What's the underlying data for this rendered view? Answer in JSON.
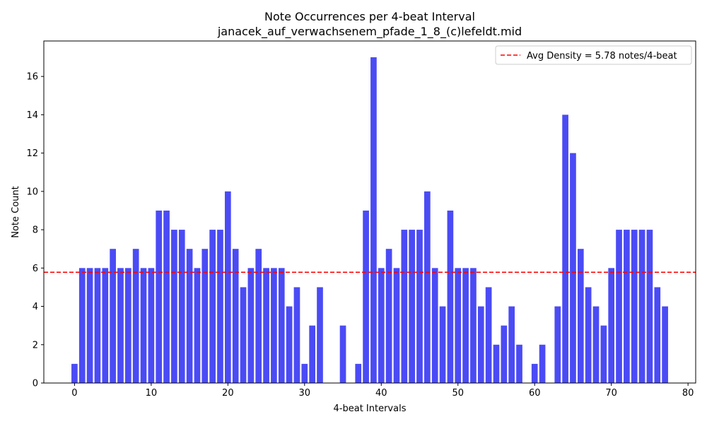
{
  "chart_data": {
    "type": "bar",
    "title": "Note Occurrences per 4-beat Interval",
    "subtitle": "janacek_auf_verwachsenem_pfade_1_8_(c)lefeldt.mid",
    "xlabel": "4-beat Intervals",
    "ylabel": "Note Count",
    "x": [
      0,
      1,
      2,
      3,
      4,
      5,
      6,
      7,
      8,
      9,
      10,
      11,
      12,
      13,
      14,
      15,
      16,
      17,
      18,
      19,
      20,
      21,
      22,
      23,
      24,
      25,
      26,
      27,
      28,
      29,
      30,
      31,
      32,
      33,
      34,
      35,
      36,
      37,
      38,
      39,
      40,
      41,
      42,
      43,
      44,
      45,
      46,
      47,
      48,
      49,
      50,
      51,
      52,
      53,
      54,
      55,
      56,
      57,
      58,
      59,
      60,
      61,
      62,
      63,
      64,
      65,
      66,
      67,
      68,
      69,
      70,
      71,
      72,
      73,
      74,
      75,
      76,
      77
    ],
    "values": [
      1,
      6,
      6,
      6,
      6,
      7,
      6,
      6,
      7,
      6,
      6,
      9,
      9,
      8,
      8,
      7,
      6,
      7,
      8,
      8,
      10,
      7,
      5,
      6,
      7,
      6,
      6,
      6,
      4,
      5,
      1,
      3,
      5,
      0,
      0,
      3,
      0,
      1,
      9,
      17,
      6,
      7,
      6,
      8,
      8,
      8,
      10,
      6,
      4,
      9,
      6,
      6,
      6,
      4,
      5,
      2,
      3,
      4,
      2,
      0,
      1,
      2,
      0,
      4,
      14,
      12,
      7,
      5,
      4,
      3,
      6,
      8,
      8,
      8,
      8,
      8,
      5,
      4
    ],
    "xlim": [
      -4,
      81
    ],
    "ylim": [
      0,
      17.85
    ],
    "xticks": [
      0,
      10,
      20,
      30,
      40,
      50,
      60,
      70,
      80
    ],
    "yticks": [
      0,
      2,
      4,
      6,
      8,
      10,
      12,
      14,
      16
    ],
    "bar_color": "#4b4bf5",
    "average": {
      "value": 5.78,
      "label": "Avg Density = 5.78 notes/4-beat",
      "color": "#ff0000",
      "style": "dashed"
    },
    "legend_position": "top-right",
    "grid": false
  }
}
